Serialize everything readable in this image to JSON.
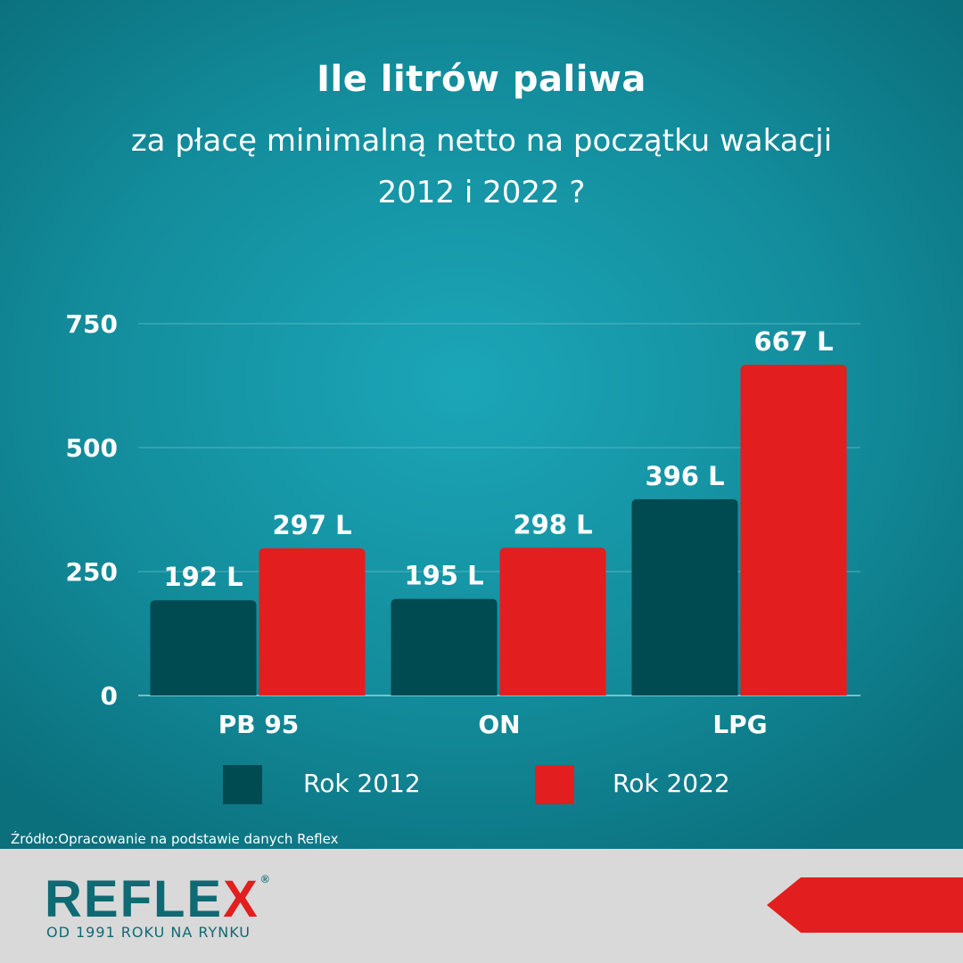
{
  "title": "Ile litrów paliwa",
  "subtitle_line1": "za płacę minimalną netto na początku wakacji",
  "subtitle_line2": "2012 i 2022 ?",
  "source": "Źródło:Opracowanie na podstawie danych Reflex",
  "footer": {
    "logo_main": "REFLE",
    "logo_x": "X",
    "logo_mark": "®",
    "tagline": "OD 1991 ROKU NA RYNKU"
  },
  "colors": {
    "series_2012": "#004a52",
    "series_2022": "#e31e1e",
    "text": "#ffffff",
    "grid": "#6cc2cc"
  },
  "chart_data": {
    "type": "bar",
    "title": "Ile litrów paliwa",
    "categories": [
      "PB 95",
      "ON",
      "LPG"
    ],
    "series": [
      {
        "name": "Rok 2012",
        "values": [
          192,
          195,
          396
        ],
        "labels": [
          "192 L",
          "195 L",
          "396 L"
        ]
      },
      {
        "name": "Rok 2022",
        "values": [
          297,
          298,
          667
        ],
        "labels": [
          "297 L",
          "298 L",
          "667 L"
        ]
      }
    ],
    "y_ticks": [
      0,
      250,
      500,
      750
    ],
    "ylim": [
      0,
      750
    ],
    "grid": true,
    "legend_position": "bottom"
  }
}
